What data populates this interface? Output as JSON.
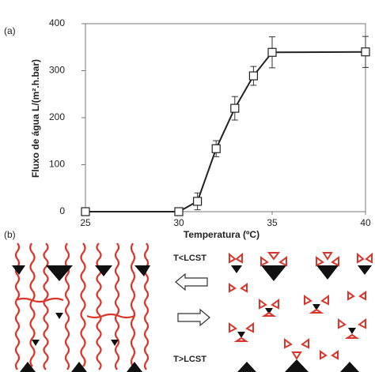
{
  "chart_data": {
    "type": "line",
    "x_label": "Temperatura (ºC)",
    "y_label": "Fluxo de água L/(m².h.bar)",
    "x": [
      25,
      30,
      31,
      32,
      33,
      34,
      35,
      40
    ],
    "series": [
      {
        "color": "#222222",
        "values": [
          0,
          0,
          22,
          134,
          220,
          289,
          339,
          340
        ],
        "errors": [
          null,
          null,
          18,
          17,
          25,
          20,
          33,
          33
        ]
      }
    ],
    "xlim": [
      25,
      40
    ],
    "xticks": [
      25,
      30,
      35,
      40
    ],
    "ylim": [
      0,
      400
    ],
    "yticks": [
      0,
      100,
      200,
      300,
      400
    ],
    "grid": false
  },
  "panel_labels": [
    "(a)",
    "(b)"
  ],
  "scheme": {
    "top_label": "T<LCST",
    "bottom_label": "T>LCST"
  }
}
